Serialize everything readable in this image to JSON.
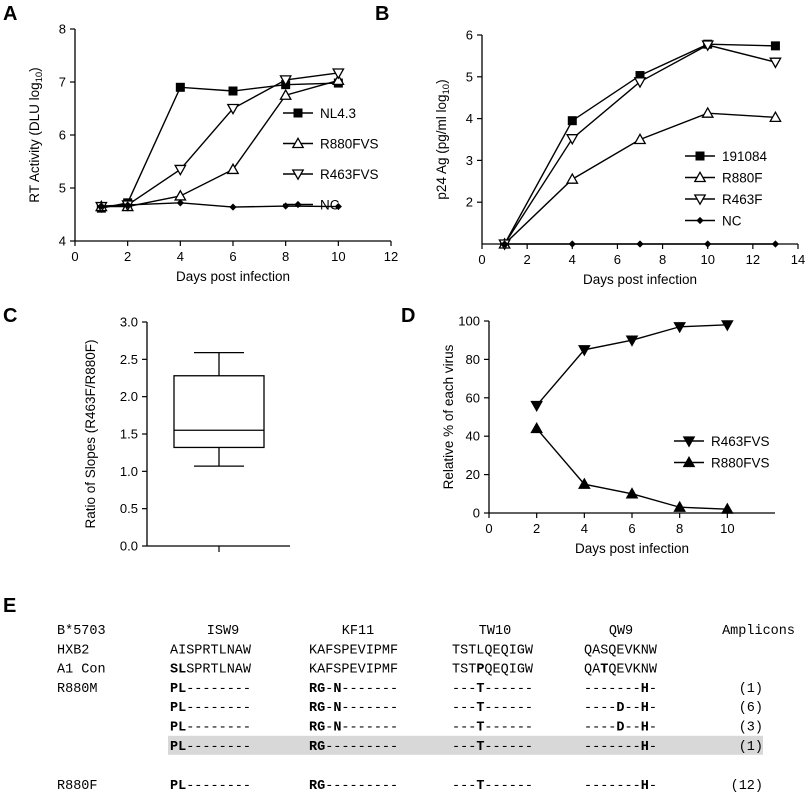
{
  "panels": {
    "A": "A",
    "B": "B",
    "C": "C",
    "D": "D",
    "E": "E"
  },
  "chart_data": [
    {
      "id": "A",
      "type": "line",
      "xlabel": "Days post infection",
      "ylabel": "RT Activity (DLU log",
      "ylabel_sub": "10",
      "ylabel_end": ")",
      "xlim": [
        0,
        12
      ],
      "ylim": [
        4,
        8
      ],
      "xticks": [
        0,
        2,
        4,
        6,
        8,
        10,
        12
      ],
      "yticks": [
        4,
        5,
        6,
        7,
        8
      ],
      "legend_position": "right",
      "series": [
        {
          "name": "NL4.3",
          "marker": "square-filled",
          "x": [
            1,
            2,
            4,
            6,
            8,
            10
          ],
          "y": [
            4.62,
            4.72,
            6.9,
            6.83,
            6.95,
            6.98
          ]
        },
        {
          "name": "R880FVS",
          "marker": "triangle-up-open",
          "x": [
            1,
            2,
            4,
            6,
            8,
            10
          ],
          "y": [
            4.65,
            4.65,
            4.85,
            5.35,
            6.75,
            7.03
          ]
        },
        {
          "name": "R463FVS",
          "marker": "triangle-down-open",
          "x": [
            1,
            2,
            4,
            6,
            8,
            10
          ],
          "y": [
            4.65,
            4.68,
            5.35,
            6.5,
            7.04,
            7.17
          ]
        },
        {
          "name": "NC",
          "marker": "diamond-filled",
          "x": [
            1,
            2,
            4,
            6,
            8,
            10
          ],
          "y": [
            4.66,
            4.68,
            4.72,
            4.64,
            4.66,
            4.65
          ]
        }
      ]
    },
    {
      "id": "B",
      "type": "line",
      "xlabel": "Days post infection",
      "ylabel": "p24 Ag (pg/ml log",
      "ylabel_sub": "10",
      "ylabel_end": ")",
      "xlim": [
        0,
        14
      ],
      "ylim": [
        1,
        6
      ],
      "xticks": [
        0,
        2,
        4,
        6,
        8,
        10,
        12,
        14
      ],
      "yticks": [
        2,
        3,
        4,
        5,
        6
      ],
      "legend_position": "right",
      "series": [
        {
          "name": "191084",
          "marker": "square-filled",
          "x": [
            1,
            4,
            7,
            10,
            13
          ],
          "y": [
            1.0,
            3.95,
            5.03,
            5.78,
            5.74
          ]
        },
        {
          "name": "R880F",
          "marker": "triangle-up-open",
          "x": [
            1,
            4,
            7,
            10,
            13
          ],
          "y": [
            1.0,
            2.55,
            3.5,
            4.13,
            4.03
          ]
        },
        {
          "name": "R463F",
          "marker": "triangle-down-open",
          "x": [
            1,
            4,
            7,
            10,
            13
          ],
          "y": [
            1.0,
            3.52,
            4.88,
            5.76,
            5.35
          ]
        },
        {
          "name": "NC",
          "marker": "diamond-filled",
          "x": [
            1,
            4,
            7,
            10,
            13
          ],
          "y": [
            1.0,
            1.0,
            1.0,
            1.0,
            1.0
          ]
        }
      ]
    },
    {
      "id": "C",
      "type": "box",
      "ylabel": "Ratio of Slopes (R463F/R880F)",
      "ylim": [
        0,
        3.0
      ],
      "yticks": [
        "0.0",
        "0.5",
        "1.0",
        "1.5",
        "2.0",
        "2.5",
        "3.0"
      ],
      "box": {
        "min": 1.07,
        "q1": 1.32,
        "median": 1.55,
        "q3": 2.28,
        "max": 2.59
      }
    },
    {
      "id": "D",
      "type": "line",
      "xlabel": "Days post infection",
      "ylabel": "Relative % of each virus",
      "xlim": [
        0,
        12
      ],
      "ylim": [
        0,
        100
      ],
      "xticks": [
        0,
        2,
        4,
        6,
        8,
        10
      ],
      "yticks": [
        0,
        20,
        40,
        60,
        80,
        100
      ],
      "legend_position": "right",
      "series": [
        {
          "name": "R463FVS",
          "marker": "triangle-down-filled",
          "x": [
            2,
            4,
            6,
            8,
            10
          ],
          "y": [
            56,
            85,
            90,
            97,
            98
          ]
        },
        {
          "name": "R880FVS",
          "marker": "triangle-up-filled",
          "x": [
            2,
            4,
            6,
            8,
            10
          ],
          "y": [
            44,
            15,
            10,
            3,
            2
          ]
        }
      ]
    }
  ],
  "alignment": {
    "header": {
      "label": "B*5703",
      "cols": [
        "ISW9",
        "KF11",
        "TW10",
        "QW9"
      ],
      "right": "Amplicons"
    },
    "rows": [
      {
        "label": "HXB2",
        "cells": [
          [
            [
              "AISPRTLNAW",
              false
            ]
          ],
          [
            [
              "KAFSPEVIPMF",
              false
            ]
          ],
          [
            [
              "TSTLQEQIGW",
              false
            ]
          ],
          [
            [
              "QASQEVKNW",
              false
            ]
          ]
        ],
        "count": "",
        "shaded": false
      },
      {
        "label": "A1 Con",
        "cells": [
          [
            [
              "SL",
              true
            ],
            [
              "SPRTLNAW",
              false
            ]
          ],
          [
            [
              "KAFSPEVIPMF",
              false
            ]
          ],
          [
            [
              "TST",
              false
            ],
            [
              "P",
              true
            ],
            [
              "QEQIGW",
              false
            ]
          ],
          [
            [
              "QA",
              false
            ],
            [
              "T",
              true
            ],
            [
              "QEVKNW",
              false
            ]
          ]
        ],
        "count": "",
        "shaded": false
      },
      {
        "label": "R880M",
        "cells": [
          [
            [
              "PL",
              true
            ],
            [
              "--------",
              false
            ]
          ],
          [
            [
              "RG",
              true
            ],
            [
              "-",
              false
            ],
            [
              "N",
              true
            ],
            [
              "-------",
              false
            ]
          ],
          [
            [
              "---",
              false
            ],
            [
              "T",
              true
            ],
            [
              "------",
              false
            ]
          ],
          [
            [
              "-------",
              false
            ],
            [
              "H",
              true
            ],
            [
              "-",
              false
            ]
          ]
        ],
        "count": "(1)",
        "shaded": false
      },
      {
        "label": "",
        "cells": [
          [
            [
              "PL",
              true
            ],
            [
              "--------",
              false
            ]
          ],
          [
            [
              "RG",
              true
            ],
            [
              "-",
              false
            ],
            [
              "N",
              true
            ],
            [
              "-------",
              false
            ]
          ],
          [
            [
              "---",
              false
            ],
            [
              "T",
              true
            ],
            [
              "------",
              false
            ]
          ],
          [
            [
              "----",
              false
            ],
            [
              "D",
              true
            ],
            [
              "--",
              false
            ],
            [
              "H",
              true
            ],
            [
              "-",
              false
            ]
          ]
        ],
        "count": "(6)",
        "shaded": false
      },
      {
        "label": "",
        "cells": [
          [
            [
              "PL",
              true
            ],
            [
              "--------",
              false
            ]
          ],
          [
            [
              "RG",
              true
            ],
            [
              "-",
              false
            ],
            [
              "N",
              true
            ],
            [
              "-------",
              false
            ]
          ],
          [
            [
              "---",
              false
            ],
            [
              "T",
              true
            ],
            [
              "------",
              false
            ]
          ],
          [
            [
              "----",
              false
            ],
            [
              "D",
              true
            ],
            [
              "--",
              false
            ],
            [
              "H",
              true
            ],
            [
              "-",
              false
            ]
          ]
        ],
        "count": "(3)",
        "shaded": false
      },
      {
        "label": "",
        "cells": [
          [
            [
              "PL",
              true
            ],
            [
              "--------",
              false
            ]
          ],
          [
            [
              "RG",
              true
            ],
            [
              "---------",
              false
            ]
          ],
          [
            [
              "---",
              false
            ],
            [
              "T",
              true
            ],
            [
              "------",
              false
            ]
          ],
          [
            [
              "-------",
              false
            ],
            [
              "H",
              true
            ],
            [
              "-",
              false
            ]
          ]
        ],
        "count": "(1)",
        "shaded": true
      },
      {
        "label": "R880F",
        "cells": [
          [
            [
              "PL",
              true
            ],
            [
              "--------",
              false
            ]
          ],
          [
            [
              "RG",
              true
            ],
            [
              "---------",
              false
            ]
          ],
          [
            [
              "---",
              false
            ],
            [
              "T",
              true
            ],
            [
              "------",
              false
            ]
          ],
          [
            [
              "-------",
              false
            ],
            [
              "H",
              true
            ],
            [
              "-",
              false
            ]
          ]
        ],
        "count": "(12)",
        "shaded": false,
        "gap": true
      }
    ]
  }
}
